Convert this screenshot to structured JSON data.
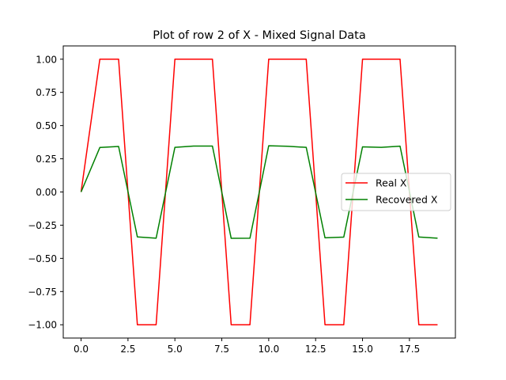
{
  "chart_data": {
    "type": "line",
    "title": "Plot of row 2 of X - Mixed Signal Data",
    "xlabel": "",
    "ylabel": "",
    "xlim": [
      -0.95,
      19.95
    ],
    "ylim": [
      -1.1,
      1.1
    ],
    "xticks": [
      0.0,
      2.5,
      5.0,
      7.5,
      10.0,
      12.5,
      15.0,
      17.5
    ],
    "xtick_labels": [
      "0.0",
      "2.5",
      "5.0",
      "7.5",
      "10.0",
      "12.5",
      "15.0",
      "17.5"
    ],
    "yticks": [
      -1.0,
      -0.75,
      -0.5,
      -0.25,
      0.0,
      0.25,
      0.5,
      0.75,
      1.0
    ],
    "ytick_labels": [
      "−1.00",
      "−0.75",
      "−0.50",
      "−0.25",
      "0.00",
      "0.25",
      "0.50",
      "0.75",
      "1.00"
    ],
    "grid": false,
    "legend_position": "center-right",
    "x": [
      0,
      1,
      2,
      3,
      4,
      5,
      6,
      7,
      8,
      9,
      10,
      11,
      12,
      13,
      14,
      15,
      16,
      17,
      18,
      19
    ],
    "series": [
      {
        "name": "Real X",
        "color": "#ff0000",
        "values": [
          0.0,
          1.0,
          1.0,
          -1.0,
          -1.0,
          1.0,
          1.0,
          1.0,
          -1.0,
          -1.0,
          1.0,
          1.0,
          1.0,
          -1.0,
          -1.0,
          1.0,
          1.0,
          1.0,
          -1.0,
          -1.0
        ]
      },
      {
        "name": "Recovered X",
        "color": "#008000",
        "values": [
          0.0,
          0.335,
          0.343,
          -0.338,
          -0.348,
          0.336,
          0.346,
          0.346,
          -0.349,
          -0.348,
          0.348,
          0.344,
          0.336,
          -0.345,
          -0.34,
          0.34,
          0.336,
          0.345,
          -0.339,
          -0.348
        ]
      }
    ]
  }
}
